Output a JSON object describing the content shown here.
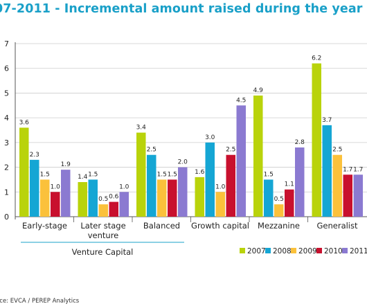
{
  "header": {
    "title": "07-2011 - Incremental amount raised during the year"
  },
  "footer": {
    "source": "rce: EVCA / PEREP Analytics"
  },
  "colors": {
    "title": "#1aa0c8",
    "axis": "#555555",
    "grid": "#cccccc"
  },
  "chart_data": {
    "type": "bar",
    "categories": [
      [
        "Early-stage"
      ],
      [
        "Later stage",
        "venture"
      ],
      [
        "Balanced"
      ],
      [
        "Growth capital"
      ],
      [
        "Mezzanine"
      ],
      [
        "Generalist"
      ]
    ],
    "group_label": "Venture Capital",
    "ylim": [
      0,
      7
    ],
    "yticks": [
      "0",
      "1",
      "2",
      "3",
      "4",
      "5",
      "6",
      "7"
    ],
    "legend_position": "bottom-right",
    "series": [
      {
        "name": "2007",
        "color": "#b9d30b",
        "values": [
          3.6,
          1.4,
          3.4,
          1.6,
          4.9,
          6.2
        ]
      },
      {
        "name": "2008",
        "color": "#15a6d4",
        "values": [
          2.3,
          1.5,
          2.5,
          3.0,
          1.5,
          3.7
        ]
      },
      {
        "name": "2009",
        "color": "#fbc13b",
        "values": [
          1.5,
          0.5,
          1.5,
          1.0,
          0.5,
          2.5
        ]
      },
      {
        "name": "2010",
        "color": "#c8102e",
        "values": [
          1.0,
          0.6,
          1.5,
          2.5,
          1.1,
          1.7
        ]
      },
      {
        "name": "2011",
        "color": "#8b7ad1",
        "values": [
          1.9,
          1.0,
          2.0,
          4.5,
          2.8,
          1.7
        ]
      }
    ]
  }
}
